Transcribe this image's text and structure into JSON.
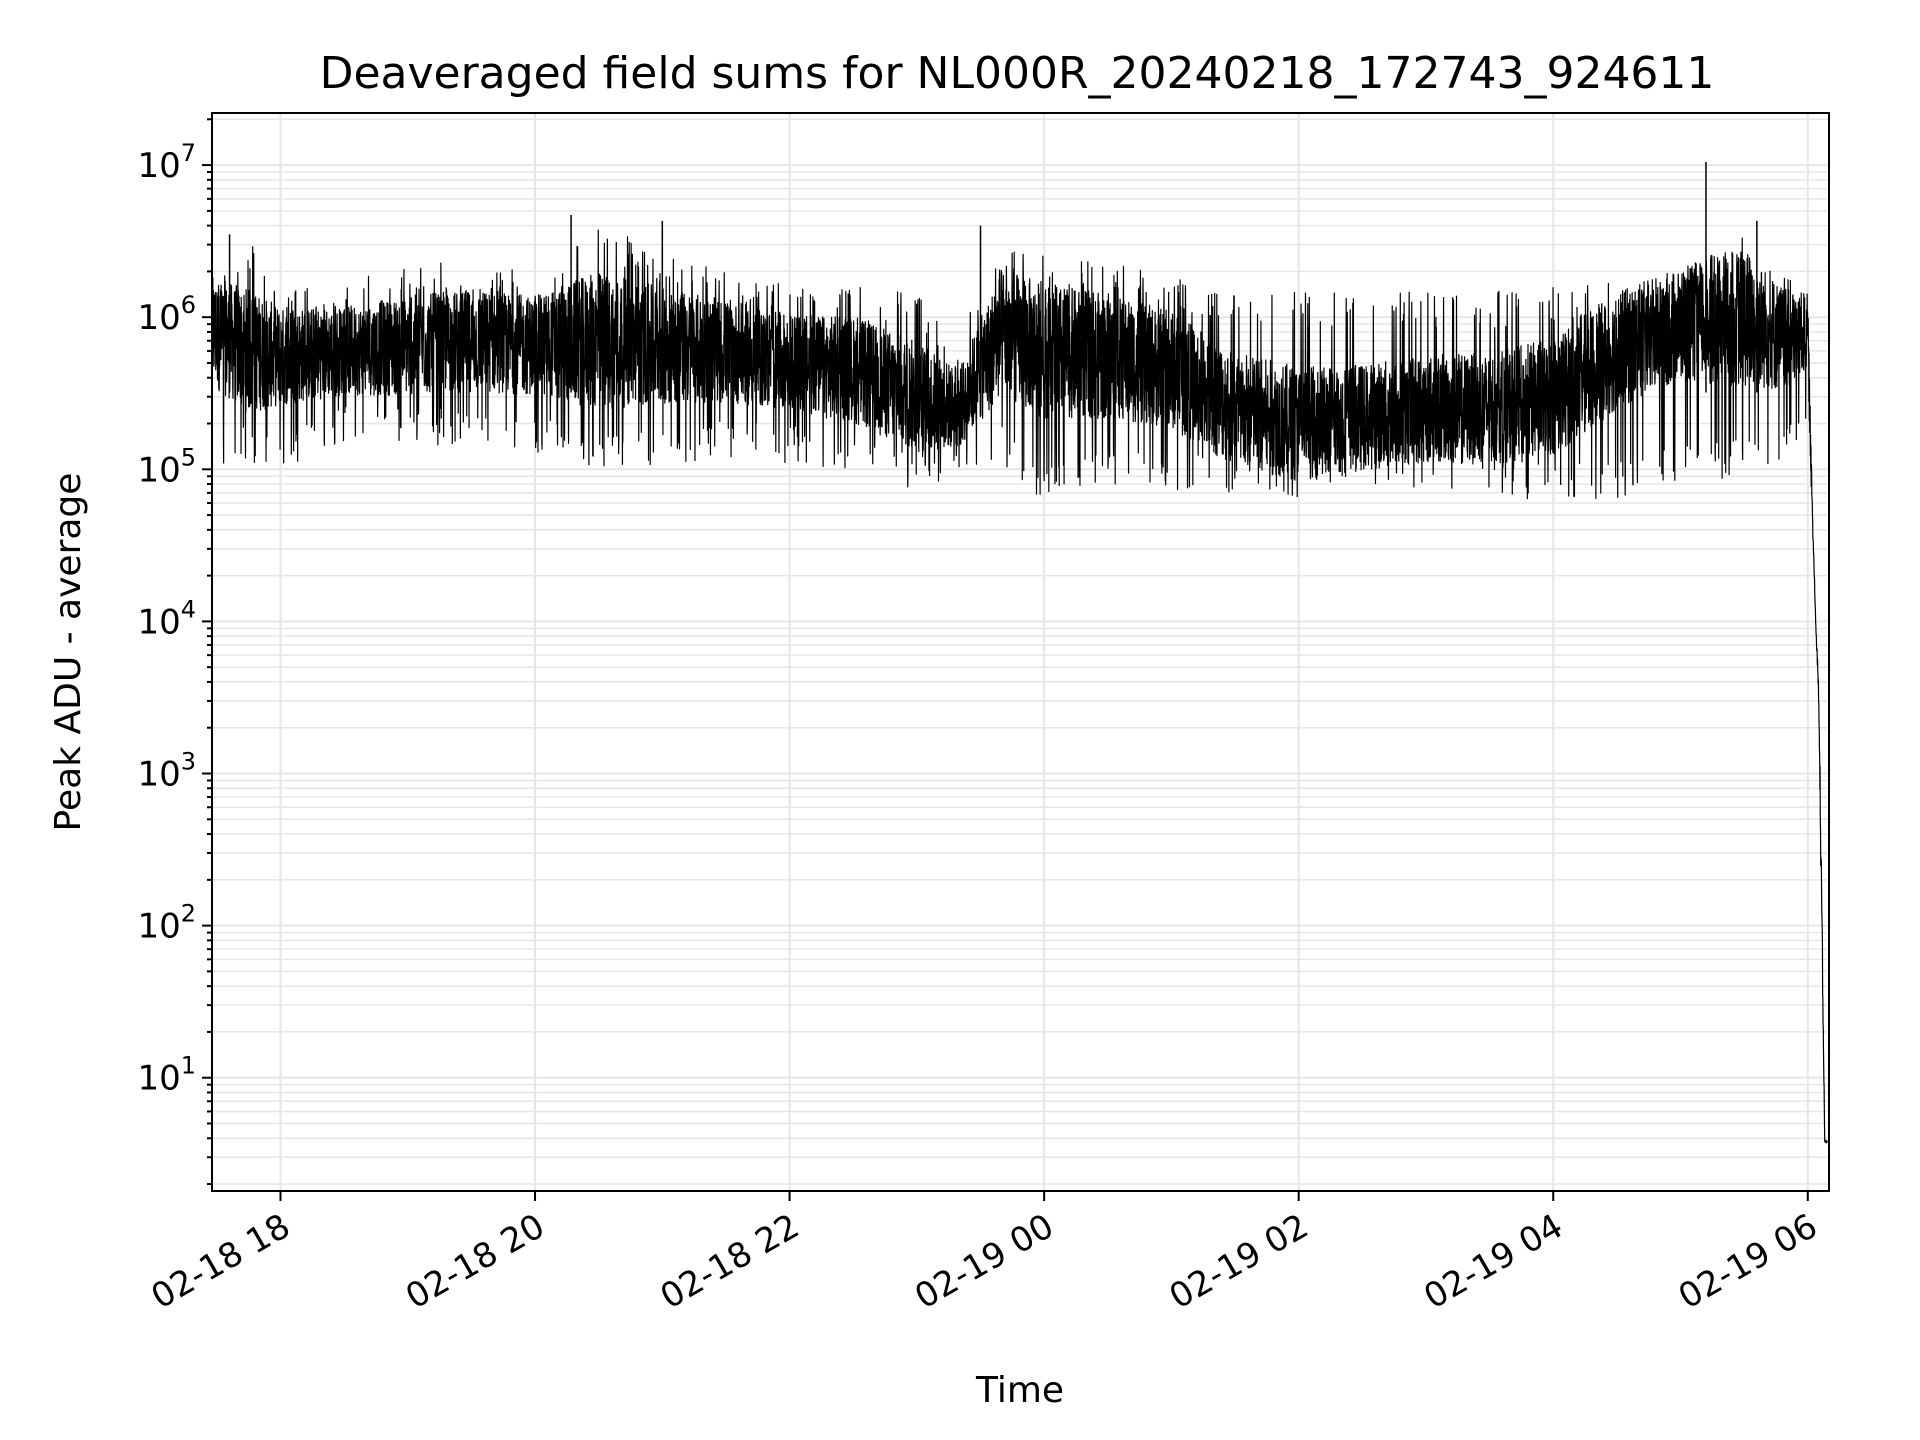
{
  "chart_data": {
    "type": "line",
    "title": "Deaveraged field sums for NL000R_20240218_172743_924611",
    "xlabel": "Time",
    "ylabel": "Peak ADU - average",
    "yscale": "log",
    "x_range": [
      "2024-02-18 17:27:43",
      "2024-02-19 06:10:00"
    ],
    "ylim": [
      1.8,
      22000000
    ],
    "grid": true,
    "legend": "none",
    "line_color": "#000000",
    "grid_color": "#e6e6e6",
    "x_ticks": [
      {
        "label": "02-18 18",
        "value": "2024-02-18 18:00"
      },
      {
        "label": "02-18 20",
        "value": "2024-02-18 20:00"
      },
      {
        "label": "02-18 22",
        "value": "2024-02-18 22:00"
      },
      {
        "label": "02-19 00",
        "value": "2024-02-19 00:00"
      },
      {
        "label": "02-19 02",
        "value": "2024-02-19 02:00"
      },
      {
        "label": "02-19 04",
        "value": "2024-02-19 04:00"
      },
      {
        "label": "02-19 06",
        "value": "2024-02-19 06:00"
      }
    ],
    "y_ticks": [
      {
        "base": "10",
        "exp": "1",
        "value": 10
      },
      {
        "base": "10",
        "exp": "2",
        "value": 100
      },
      {
        "base": "10",
        "exp": "3",
        "value": 1000
      },
      {
        "base": "10",
        "exp": "4",
        "value": 10000
      },
      {
        "base": "10",
        "exp": "5",
        "value": 100000
      },
      {
        "base": "10",
        "exp": "6",
        "value": 1000000
      },
      {
        "base": "10",
        "exp": "7",
        "value": 10000000
      }
    ],
    "series": [
      {
        "x": [
          "2024-02-18 17:28",
          "2024-02-18 17:45",
          "2024-02-18 18:00",
          "2024-02-18 18:30",
          "2024-02-18 19:00",
          "2024-02-18 19:30",
          "2024-02-18 20:00",
          "2024-02-18 20:30",
          "2024-02-18 21:00",
          "2024-02-18 21:30",
          "2024-02-18 22:00",
          "2024-02-18 22:30",
          "2024-02-18 23:00",
          "2024-02-18 23:20",
          "2024-02-18 23:40",
          "2024-02-19 00:00",
          "2024-02-19 00:30",
          "2024-02-19 01:00",
          "2024-02-19 01:30",
          "2024-02-19 02:00",
          "2024-02-19 02:30",
          "2024-02-19 03:00",
          "2024-02-19 03:30",
          "2024-02-19 04:00",
          "2024-02-19 04:30",
          "2024-02-19 05:00",
          "2024-02-19 05:30",
          "2024-02-19 05:50",
          "2024-02-19 06:00",
          "2024-02-19 06:02",
          "2024-02-19 06:04",
          "2024-02-19 06:05",
          "2024-02-19 06:06",
          "2024-02-19 06:08",
          "2024-02-19 06:09"
        ],
        "y": [
          800000,
          600000,
          550000,
          600000,
          650000,
          700000,
          650000,
          700000,
          650000,
          600000,
          500000,
          450000,
          300000,
          250000,
          800000,
          600000,
          550000,
          450000,
          250000,
          200000,
          220000,
          250000,
          250000,
          300000,
          600000,
          900000,
          1000000,
          700000,
          800000,
          60000,
          8000,
          4000,
          500,
          3.8,
          3.8
        ],
        "y_envelope_high": [
          1800000,
          3500000,
          1500000,
          1700000,
          2200000,
          2500000,
          2000000,
          4500000,
          2500000,
          2000000,
          1600000,
          1700000,
          1500000,
          700000,
          3800000,
          2500000,
          2500000,
          1800000,
          1700000,
          1500000,
          1500000,
          1500000,
          1500000,
          1600000,
          1700000,
          1800000,
          4300000,
          2000000,
          1500000,
          100000,
          9000,
          5000,
          2000,
          4,
          4
        ],
        "y_envelope_low": [
          90000,
          110000,
          100000,
          150000,
          140000,
          150000,
          130000,
          100000,
          100000,
          120000,
          110000,
          90000,
          70000,
          80000,
          110000,
          60000,
          80000,
          70000,
          70000,
          65000,
          80000,
          75000,
          70000,
          60000,
          65000,
          80000,
          90000,
          120000,
          180000,
          50000,
          7000,
          3500,
          300,
          3.6,
          3.6
        ],
        "spikes": [
          {
            "x": "2024-02-18 17:36",
            "y": 3500000
          },
          {
            "x": "2024-02-18 20:17",
            "y": 4700000
          },
          {
            "x": "2024-02-18 21:00",
            "y": 4300000
          },
          {
            "x": "2024-02-18 23:30",
            "y": 4000000
          },
          {
            "x": "2024-02-19 05:12",
            "y": 10500000
          },
          {
            "x": "2024-02-19 05:36",
            "y": 4300000
          }
        ]
      }
    ]
  }
}
